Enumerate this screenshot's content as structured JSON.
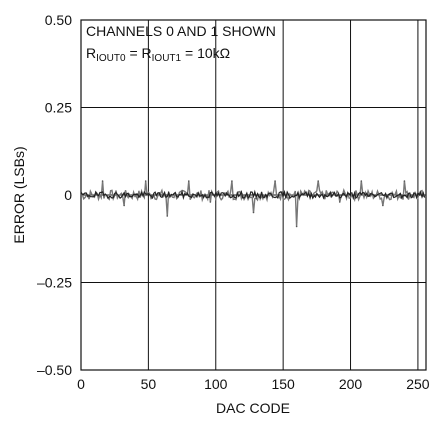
{
  "chart_data": {
    "type": "line",
    "xlabel": "DAC CODE",
    "ylabel": "ERROR (LSBs)",
    "xlim": [
      0,
      256
    ],
    "ylim": [
      -0.5,
      0.5
    ],
    "x_ticks": [
      "0",
      "50",
      "100",
      "150",
      "200",
      "250"
    ],
    "y_ticks": [
      "0.50",
      "0.25",
      "0",
      "–0.25",
      "–0.50"
    ],
    "grid": true,
    "annotation": {
      "line1": "CHANNELS 0 AND 1 SHOWN",
      "line2_main1": "R",
      "line2_sub1": "IOUT0",
      "line2_mid": " = R",
      "line2_sub2": "IOUT1",
      "line2_end": " = 10kΩ"
    },
    "series": [
      {
        "values_note": "",
        "x": [
          0,
          16,
          32,
          48,
          64,
          80,
          96,
          112,
          128,
          144,
          160,
          176,
          192,
          208,
          224,
          240,
          255
        ],
        "y": [
          0,
          0.04,
          -0.03,
          0.04,
          -0.06,
          0.04,
          -0.02,
          0.04,
          -0.05,
          0.04,
          -0.09,
          0.04,
          -0.02,
          0.04,
          -0.03,
          0.04,
          0
        ]
      }
    ]
  }
}
